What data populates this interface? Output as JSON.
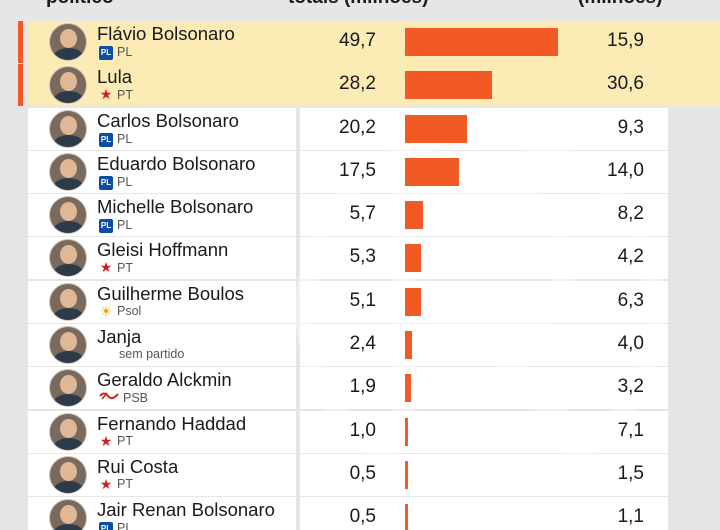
{
  "headers": {
    "col1": "político",
    "col2": "totais (milhões)",
    "col3": "(milhões)"
  },
  "colors": {
    "bar": "#f15a24",
    "highlight": "#fcebb5",
    "marker": "#f15a24",
    "background": "#e6e6e6"
  },
  "chart_data": {
    "type": "bar",
    "orientation": "horizontal",
    "categories": [
      "Flávio Bolsonaro",
      "Lula",
      "Carlos Bolsonaro",
      "Eduardo Bolsonaro",
      "Michelle Bolsonaro",
      "Gleisi Hoffmann",
      "Guilherme Boulos",
      "Janja",
      "Geraldo Alckmin",
      "Fernando Haddad",
      "Rui Costa",
      "Jair Renan Bolsonaro"
    ],
    "xlim": [
      0,
      49.7
    ],
    "series": [
      {
        "values": [
          49.7,
          28.2,
          20.2,
          17.5,
          5.7,
          5.3,
          5.1,
          2.4,
          1.9,
          1.0,
          0.5,
          0.5
        ]
      },
      {
        "values": [
          15.9,
          30.6,
          9.3,
          14.0,
          8.2,
          4.2,
          6.3,
          4.0,
          3.2,
          7.1,
          1.5,
          1.1
        ]
      }
    ]
  },
  "rows": [
    {
      "name": "Flávio Bolsonaro",
      "party": "PL",
      "party_icon": "pl-logo-icon",
      "total": "49,7",
      "right": "15,9",
      "highlight": true
    },
    {
      "name": "Lula",
      "party": "PT",
      "party_icon": "pt-star-icon",
      "total": "28,2",
      "right": "30,6",
      "highlight": true
    },
    {
      "name": "Carlos Bolsonaro",
      "party": "PL",
      "party_icon": "pl-logo-icon",
      "total": "20,2",
      "right": "9,3",
      "highlight": false
    },
    {
      "name": "Eduardo Bolsonaro",
      "party": "PL",
      "party_icon": "pl-logo-icon",
      "total": "17,5",
      "right": "14,0",
      "highlight": false
    },
    {
      "name": "Michelle Bolsonaro",
      "party": "PL",
      "party_icon": "pl-logo-icon",
      "total": "5,7",
      "right": "8,2",
      "highlight": false
    },
    {
      "name": "Gleisi Hoffmann",
      "party": "PT",
      "party_icon": "pt-star-icon",
      "total": "5,3",
      "right": "4,2",
      "highlight": false
    },
    {
      "name": "Guilherme Boulos",
      "party": "Psol",
      "party_icon": "psol-sun-icon",
      "total": "5,1",
      "right": "6,3",
      "highlight": false
    },
    {
      "name": "Janja",
      "party": "sem partido",
      "party_icon": "",
      "total": "2,4",
      "right": "4,0",
      "highlight": false
    },
    {
      "name": "Geraldo Alckmin",
      "party": "PSB",
      "party_icon": "psb-logo-icon",
      "total": "1,9",
      "right": "3,2",
      "highlight": false
    },
    {
      "name": "Fernando Haddad",
      "party": "PT",
      "party_icon": "pt-star-icon",
      "total": "1,0",
      "right": "7,1",
      "highlight": false
    },
    {
      "name": "Rui Costa",
      "party": "PT",
      "party_icon": "pt-star-icon",
      "total": "0,5",
      "right": "1,5",
      "highlight": false
    },
    {
      "name": "Jair Renan Bolsonaro",
      "party": "PL",
      "party_icon": "pl-logo-icon",
      "total": "0,5",
      "right": "1,1",
      "highlight": false
    }
  ]
}
